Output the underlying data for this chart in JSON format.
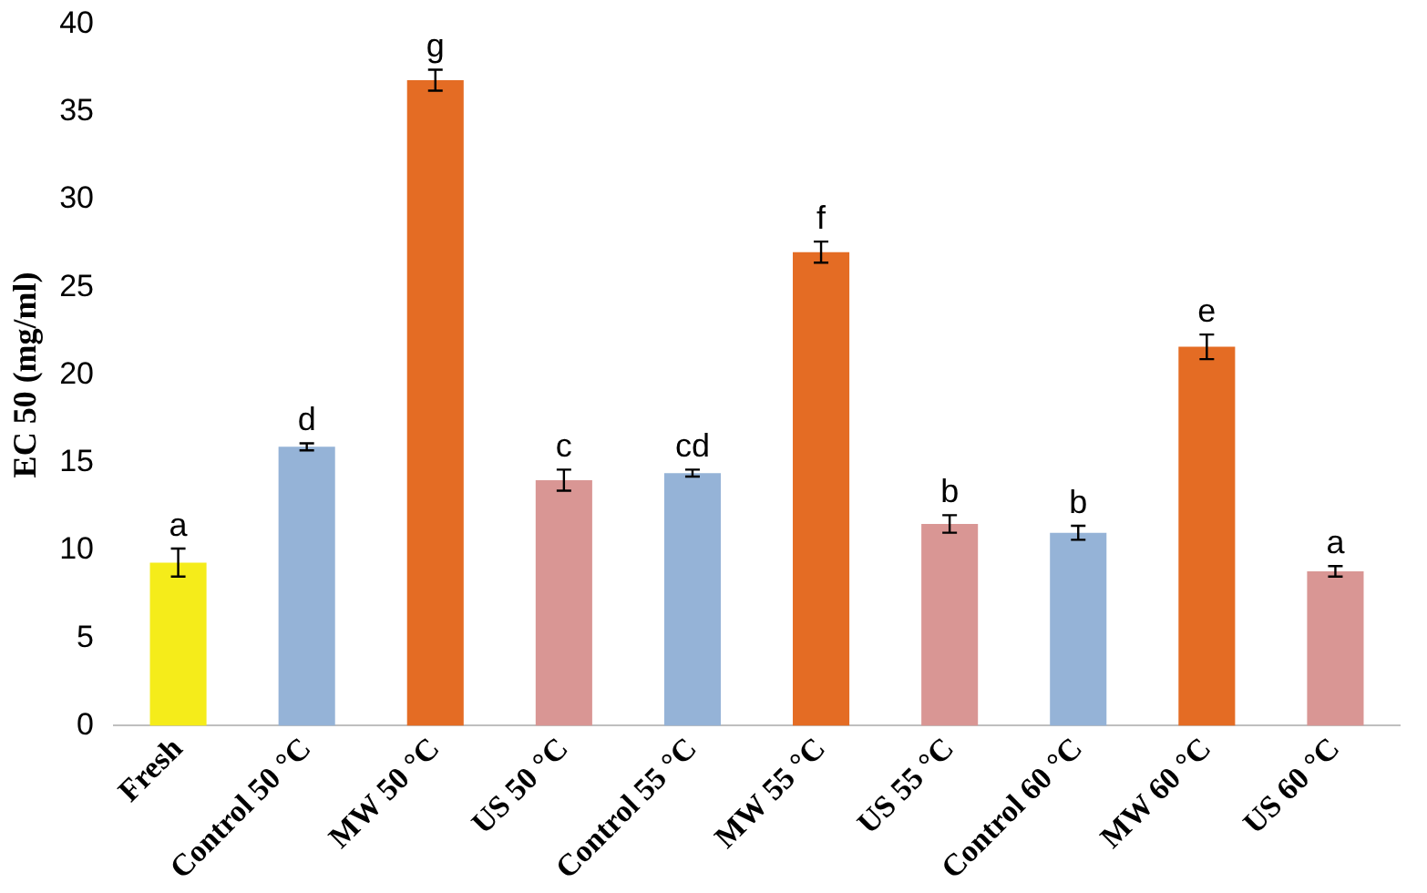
{
  "chart_data": {
    "type": "bar",
    "ylabel": "EC 50 (mg/ml)",
    "categories": [
      "Fresh",
      "Control 50 °C",
      "MW 50 °C",
      "US 50 °C",
      "Control 55 °C",
      "MW 55 °C",
      "US 55 °C",
      "Control 60 °C",
      "MW 60 °C",
      "US 60 °C"
    ],
    "values": [
      9.3,
      15.9,
      36.8,
      14.0,
      14.4,
      27.0,
      11.5,
      11.0,
      21.6,
      8.8
    ],
    "errors": [
      0.8,
      0.2,
      0.6,
      0.6,
      0.2,
      0.6,
      0.5,
      0.4,
      0.7,
      0.3
    ],
    "colors": [
      "#f5ec1a",
      "#95b3d7",
      "#e46c24",
      "#d99694",
      "#95b3d7",
      "#e46c24",
      "#d99694",
      "#95b3d7",
      "#e46c24",
      "#d99694"
    ],
    "ylim": [
      0,
      40
    ],
    "yticks": [
      0,
      5,
      10,
      15,
      20,
      25,
      30,
      35,
      40
    ],
    "grid": false,
    "legend": false,
    "annotations": [
      {
        "text": "a",
        "x": "Fresh",
        "y": 10.1
      },
      {
        "text": "d",
        "x": "Control 50 °C",
        "y": 16.1
      },
      {
        "text": "g",
        "x": "MW 50 °C",
        "y": 37.4
      },
      {
        "text": "c",
        "x": "US 50 °C",
        "y": 14.6
      },
      {
        "text": "cd",
        "x": "Control 55 °C",
        "y": 14.6
      },
      {
        "text": "f",
        "x": "MW 55 °C",
        "y": 27.6
      },
      {
        "text": "b",
        "x": "US 55 °C",
        "y": 12.0
      },
      {
        "text": "b",
        "x": "Control 60 °C",
        "y": 11.4
      },
      {
        "text": "e",
        "x": "MW 60 °C",
        "y": 22.3
      },
      {
        "text": "a",
        "x": "US 60 °C",
        "y": 9.1
      }
    ]
  }
}
